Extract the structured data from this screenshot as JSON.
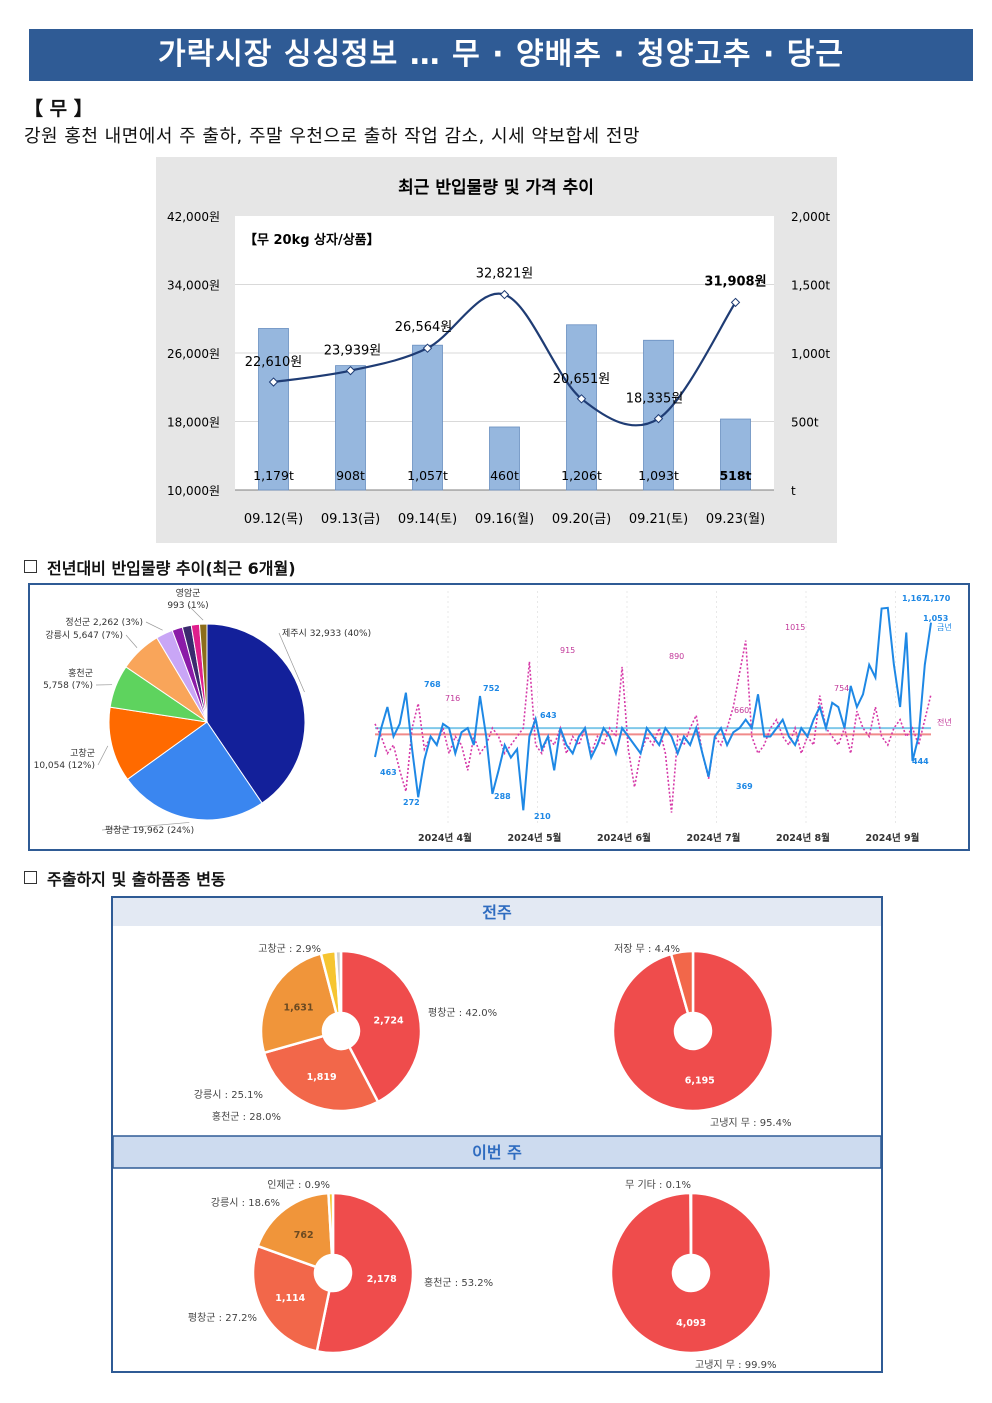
{
  "header": {
    "title": "가락시장 싱싱정보 …  무 · 양배추 · 청양고추 · 당근"
  },
  "section": {
    "heading": "【 무 】",
    "summary": "강원 홍천 내면에서 주 출하, 주말 우천으로 출하 작업 감소, 시세 약보합세 전망"
  },
  "chart_data": [
    {
      "type": "bar",
      "title": "최근 반입물량 및 가격 추이",
      "annotation": "【무 20kg 상자/상품】",
      "categories": [
        "09.12(목)",
        "09.13(금)",
        "09.14(토)",
        "09.16(월)",
        "09.20(금)",
        "09.21(토)",
        "09.23(월)"
      ],
      "series": [
        {
          "name": "반입물량",
          "axis": "right",
          "values": [
            1179,
            908,
            1057,
            460,
            1206,
            1093,
            518
          ],
          "labels": [
            "1,179t",
            "908t",
            "1,057t",
            "460t",
            "1,206t",
            "1,093t",
            "518t"
          ]
        },
        {
          "name": "가격",
          "axis": "left",
          "values": [
            22610,
            23939,
            26564,
            32821,
            20651,
            18335,
            31908
          ],
          "labels": [
            "22,610원",
            "23,939원",
            "26,564원",
            "32,821원",
            "20,651원",
            "18,335원",
            "31,908원"
          ]
        }
      ],
      "left_axis": {
        "ticks": [
          "42,000원",
          "34,000원",
          "26,000원",
          "18,000원",
          "10,000원"
        ],
        "range": [
          10000,
          42000
        ]
      },
      "right_axis": {
        "ticks": [
          "2,000t",
          "1,500t",
          "1,000t",
          "500t",
          "t"
        ],
        "range": [
          0,
          2000
        ]
      }
    },
    {
      "type": "pie",
      "title": "전년대비 반입물량 추이(최근 6개월)",
      "slices": [
        {
          "label": "제주시 32,933 (40%)",
          "value": 32933,
          "color": "#13209a"
        },
        {
          "label": "평창군 19,962 (24%)",
          "value": 19962,
          "color": "#3a86f0"
        },
        {
          "label": "고창군\n10,054 (12%)",
          "value": 10054,
          "color": "#ff6a00"
        },
        {
          "label": "홍천군\n5,758 (7%)",
          "value": 5758,
          "color": "#5ed35e"
        },
        {
          "label": "강릉시 5,647 (7%)",
          "value": 5647,
          "color": "#f9a55a"
        },
        {
          "label": "정선군 2,262 (3%)",
          "value": 2262,
          "color": "#c9a6f6"
        },
        {
          "label": "",
          "value": 1400,
          "color": "#8b1ba8"
        },
        {
          "label": "",
          "value": 1200,
          "color": "#3b2a6e"
        },
        {
          "label": "",
          "value": 1100,
          "color": "#e01e8c"
        },
        {
          "label": "영암군\n993 (1%)",
          "value": 993,
          "color": "#8c6d1a"
        }
      ]
    },
    {
      "type": "line",
      "x_ticks": [
        "2024년 4월",
        "2024년 5월",
        "2024년 6월",
        "2024년 7월",
        "2024년 8월",
        "2024년 9월"
      ],
      "series": [
        {
          "name": "금년",
          "color": "#1e88e5",
          "labels": [
            "768",
            "752",
            "643",
            "463",
            "272",
            "288",
            "210",
            "369",
            "1,167",
            "1,170",
            "1,053",
            "444"
          ],
          "values": [
            463,
            600,
            700,
            560,
            620,
            768,
            500,
            272,
            450,
            560,
            520,
            620,
            600,
            480,
            580,
            600,
            520,
            752,
            560,
            288,
            400,
            520,
            460,
            500,
            210,
            560,
            643,
            500,
            560,
            400,
            600,
            520,
            480,
            560,
            600,
            460,
            520,
            600,
            560,
            480,
            600,
            560,
            520,
            480,
            600,
            560,
            520,
            600,
            560,
            480,
            560,
            520,
            600,
            480,
            369,
            560,
            600,
            520,
            580,
            600,
            640,
            600,
            760,
            560,
            560,
            600,
            640,
            560,
            520,
            600,
            560,
            640,
            700,
            600,
            720,
            700,
            600,
            800,
            700,
            760,
            900,
            840,
            1167,
            1170,
            900,
            700,
            1053,
            444,
            560,
            900,
            1100
          ]
        },
        {
          "name": "전년",
          "color": "#d63aa8",
          "labels": [
            "716",
            "915",
            "890",
            "1015",
            "660",
            "754"
          ],
          "values": [
            620,
            560,
            480,
            520,
            400,
            300,
            600,
            716,
            500,
            560,
            520,
            600,
            480,
            560,
            520,
            400,
            560,
            480,
            520,
            600,
            560,
            480,
            520,
            560,
            600,
            915,
            520,
            480,
            560,
            520,
            600,
            480,
            560,
            520,
            600,
            480,
            560,
            520,
            600,
            560,
            890,
            500,
            320,
            480,
            560,
            520,
            600,
            480,
            200,
            560,
            520,
            600,
            660,
            480,
            360,
            560,
            520,
            600,
            700,
            860,
            1015,
            560,
            480,
            520,
            600,
            640,
            560,
            520,
            600,
            480,
            560,
            520,
            754,
            600,
            560,
            520,
            600,
            480,
            680,
            600,
            560,
            700,
            560,
            520,
            600,
            640,
            560,
            600,
            520,
            640,
            760
          ]
        }
      ],
      "legend": [
        "금년",
        "전년"
      ],
      "series_end_labels": [
        "금년",
        "전년"
      ]
    },
    {
      "type": "pie",
      "group": "전주",
      "title": "주출하지",
      "slices": [
        {
          "label": "평창군 : 42.0%",
          "value": 2724,
          "value_label": "2,724",
          "color": "#ef4c4c"
        },
        {
          "label": "홍천군 : 28.0%",
          "value": 1819,
          "value_label": "1,819",
          "color": "#f2674a"
        },
        {
          "label": "강릉시 : 25.1%",
          "value": 1631,
          "value_label": "1,631",
          "color": "#f0953a"
        },
        {
          "label": "고창군 : 2.9%",
          "value": 190,
          "value_label": "",
          "color": "#f6c531"
        },
        {
          "label": "",
          "value": 70,
          "value_label": "",
          "color": "#cfcfcf"
        }
      ]
    },
    {
      "type": "pie",
      "group": "전주",
      "title": "출하품종",
      "slices": [
        {
          "label": "고냉지 무 : 95.4%",
          "value": 6195,
          "value_label": "6,195",
          "color": "#ef4c4c"
        },
        {
          "label": "저장 무 : 4.4%",
          "value": 286,
          "value_label": "",
          "color": "#f2674a"
        }
      ]
    },
    {
      "type": "pie",
      "group": "이번 주",
      "title": "주출하지",
      "slices": [
        {
          "label": "홍천군 : 53.2%",
          "value": 2178,
          "value_label": "2,178",
          "color": "#ef4c4c"
        },
        {
          "label": "평창군 : 27.2%",
          "value": 1114,
          "value_label": "1,114",
          "color": "#f2674a"
        },
        {
          "label": "강릉시 : 18.6%",
          "value": 762,
          "value_label": "762",
          "color": "#f0953a"
        },
        {
          "label": "인제군 : 0.9%",
          "value": 37,
          "value_label": "",
          "color": "#f6c531"
        }
      ]
    },
    {
      "type": "pie",
      "group": "이번 주",
      "title": "출하품종",
      "slices": [
        {
          "label": "고냉지 무 : 99.9%",
          "value": 4093,
          "value_label": "4,093",
          "color": "#ef4c4c"
        },
        {
          "label": "무 기타 : 0.1%",
          "value": 4,
          "value_label": "",
          "color": "#f2674a"
        }
      ]
    }
  ],
  "sections": {
    "trend_title": "전년대비 반입물량 추이(최근 6개월)",
    "flow_title": "주출하지 및 출하품종 변동",
    "week_prev": "전주",
    "week_curr": "이번 주"
  }
}
